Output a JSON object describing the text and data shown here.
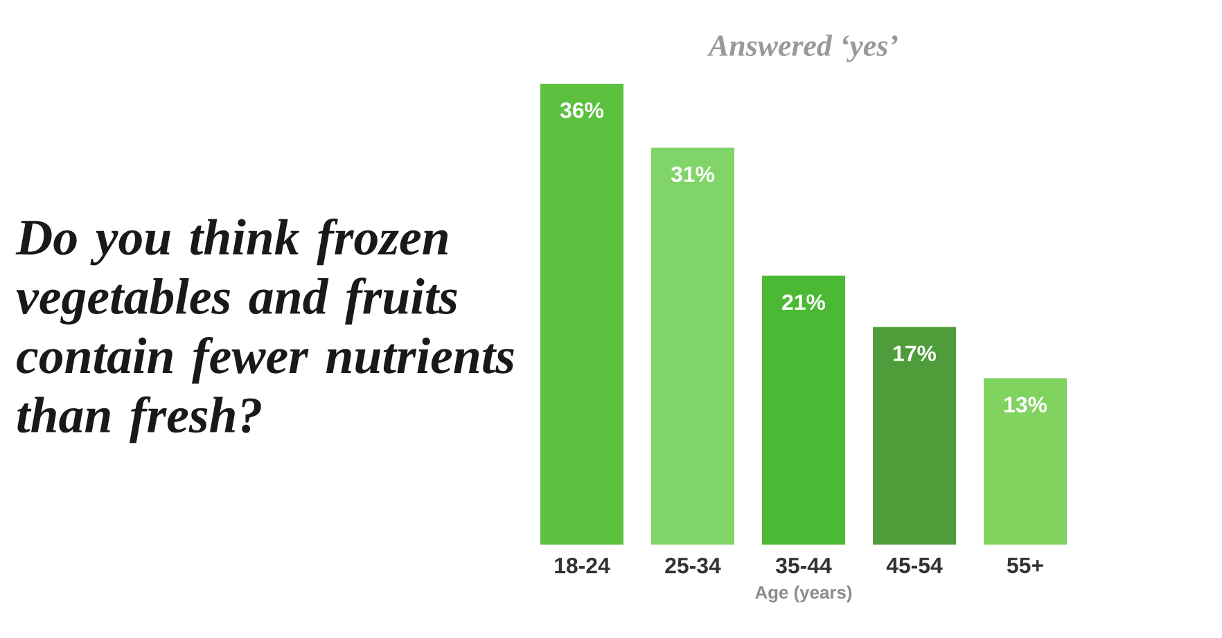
{
  "chart_data": {
    "type": "bar",
    "title": "Do you think frozen vegetables and fruits contain fewer nutrients than fresh?",
    "subtitle": "Answered ‘yes’",
    "xlabel": "Age (years)",
    "categories": [
      "18-24",
      "25-34",
      "35-44",
      "45-54",
      "55+"
    ],
    "values": [
      36,
      31,
      21,
      17,
      13
    ],
    "value_labels": [
      "36%",
      "31%",
      "21%",
      "17%",
      "13%"
    ],
    "colors": [
      "#5bc13e",
      "#80d468",
      "#4cb934",
      "#4f9d3a",
      "#7fd35e"
    ]
  }
}
